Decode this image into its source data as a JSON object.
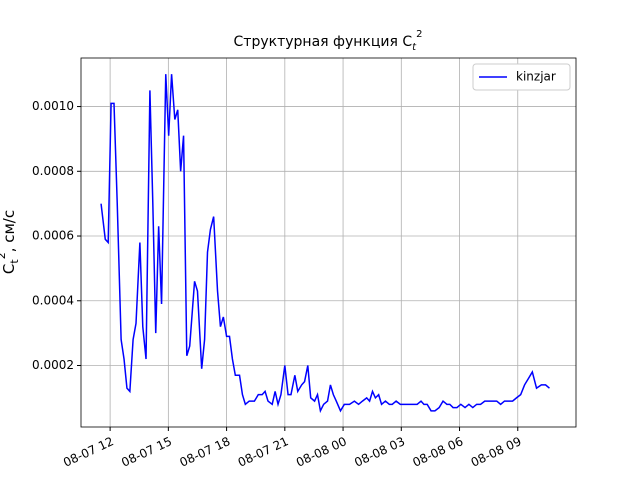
{
  "chart_data": {
    "type": "line",
    "title": "Структурная функция C",
    "title_subscript": "t",
    "title_superscript": "2",
    "y_label": "C",
    "y_label_subscript": "t",
    "y_label_superscript": "2",
    "y_label_unit": ", см/с",
    "x": [
      "08-07 11:32",
      "08-07 11:45",
      "08-07 11:54",
      "08-07 12:03",
      "08-07 12:12",
      "08-07 12:22",
      "08-07 12:34",
      "08-07 12:43",
      "08-07 12:52",
      "08-07 13:01",
      "08-07 13:11",
      "08-07 13:20",
      "08-07 13:32",
      "08-07 13:41",
      "08-07 13:51",
      "08-07 14:03",
      "08-07 14:12",
      "08-07 14:21",
      "08-07 14:30",
      "08-07 14:39",
      "08-07 14:52",
      "08-07 15:01",
      "08-07 15:10",
      "08-07 15:20",
      "08-07 15:29",
      "08-07 15:38",
      "08-07 15:47",
      "08-07 15:57",
      "08-07 16:06",
      "08-07 16:21",
      "08-07 16:30",
      "08-07 16:43",
      "08-07 16:52",
      "08-07 17:01",
      "08-07 17:10",
      "08-07 17:20",
      "08-07 17:32",
      "08-07 17:41",
      "08-07 17:50",
      "08-07 18:00",
      "08-07 18:09",
      "08-07 18:18",
      "08-07 18:27",
      "08-07 18:40",
      "08-07 18:49",
      "08-07 18:58",
      "08-07 19:10",
      "08-07 19:26",
      "08-07 19:38",
      "08-07 19:50",
      "08-07 19:59",
      "08-07 20:08",
      "08-07 20:21",
      "08-07 20:30",
      "08-07 20:39",
      "08-07 20:48",
      "08-07 21:00",
      "08-07 21:10",
      "08-07 21:19",
      "08-07 21:31",
      "08-07 21:40",
      "08-07 21:52",
      "08-07 22:01",
      "08-07 22:11",
      "08-07 22:20",
      "08-07 22:32",
      "08-07 22:41",
      "08-07 22:50",
      "08-07 23:00",
      "08-07 23:12",
      "08-07 23:21",
      "08-07 23:30",
      "08-07 23:39",
      "08-07 23:52",
      "08-08 00:04",
      "08-08 00:20",
      "08-08 00:35",
      "08-08 00:48",
      "08-08 01:00",
      "08-08 01:13",
      "08-08 01:22",
      "08-08 01:31",
      "08-08 01:40",
      "08-08 01:50",
      "08-08 01:59",
      "08-08 02:11",
      "08-08 02:23",
      "08-08 02:32",
      "08-08 02:44",
      "08-08 02:57",
      "08-08 03:12",
      "08-08 03:24",
      "08-08 03:37",
      "08-08 03:49",
      "08-08 04:01",
      "08-08 04:10",
      "08-08 04:20",
      "08-08 04:32",
      "08-08 04:44",
      "08-08 04:57",
      "08-08 05:09",
      "08-08 05:21",
      "08-08 05:30",
      "08-08 05:40",
      "08-08 05:52",
      "08-08 06:04",
      "08-08 06:17",
      "08-08 06:29",
      "08-08 06:41",
      "08-08 06:53",
      "08-08 07:05",
      "08-08 07:18",
      "08-08 07:30",
      "08-08 07:42",
      "08-08 07:55",
      "08-08 08:07",
      "08-08 08:19",
      "08-08 08:32",
      "08-08 08:44",
      "08-08 08:56",
      "08-08 09:09",
      "08-08 09:21",
      "08-08 09:33",
      "08-08 09:45",
      "08-08 09:58",
      "08-08 10:13",
      "08-08 10:26",
      "08-08 10:38"
    ],
    "series": [
      {
        "name": "kinzjar",
        "color": "#0000ff",
        "values": [
          0.0007,
          0.00059,
          0.00058,
          0.00101,
          0.00101,
          0.0007,
          0.00028,
          0.00022,
          0.00013,
          0.00012,
          0.00028,
          0.00033,
          0.00058,
          0.00032,
          0.00022,
          0.00105,
          0.0007,
          0.0003,
          0.00063,
          0.00039,
          0.0011,
          0.00091,
          0.0011,
          0.00096,
          0.00099,
          0.0008,
          0.00091,
          0.00023,
          0.00026,
          0.00046,
          0.00043,
          0.00019,
          0.00028,
          0.00055,
          0.00062,
          0.00066,
          0.00043,
          0.00032,
          0.00035,
          0.00029,
          0.00029,
          0.00022,
          0.00017,
          0.00017,
          0.00011,
          8e-05,
          9e-05,
          9e-05,
          0.00011,
          0.00011,
          0.00012,
          9e-05,
          8e-05,
          0.00012,
          8e-05,
          0.00011,
          0.0002,
          0.00011,
          0.00011,
          0.00017,
          0.00012,
          0.00014,
          0.00015,
          0.0002,
          0.0001,
          9e-05,
          0.00011,
          6e-05,
          8e-05,
          9e-05,
          0.00014,
          0.00011,
          9e-05,
          6e-05,
          8e-05,
          8e-05,
          9e-05,
          8e-05,
          9e-05,
          0.0001,
          9e-05,
          0.00012,
          0.0001,
          0.00011,
          8e-05,
          9e-05,
          8e-05,
          8e-05,
          9e-05,
          8e-05,
          8e-05,
          8e-05,
          8e-05,
          8e-05,
          9e-05,
          8e-05,
          8e-05,
          6e-05,
          6e-05,
          7e-05,
          9e-05,
          8e-05,
          8e-05,
          7e-05,
          7e-05,
          8e-05,
          7e-05,
          8e-05,
          7e-05,
          8e-05,
          8e-05,
          9e-05,
          9e-05,
          9e-05,
          9e-05,
          8e-05,
          9e-05,
          9e-05,
          9e-05,
          0.0001,
          0.00011,
          0.00014,
          0.00016,
          0.00018,
          0.00013,
          0.00014,
          0.00014,
          0.00013
        ]
      }
    ],
    "xlim": [
      "08-07 10:30",
      "08-08 12:00"
    ],
    "xticks": [
      "08-07 12",
      "08-07 15",
      "08-07 18",
      "08-07 21",
      "08-08 00",
      "08-08 03",
      "08-08 06",
      "08-08 09"
    ],
    "ylim": [
      1e-05,
      0.00115
    ],
    "yticks": [
      0.0002,
      0.0004,
      0.0006,
      0.0008,
      {
        "value": 0.001,
        "label": "0.0010"
      }
    ],
    "grid": true,
    "legend": "upper right"
  }
}
